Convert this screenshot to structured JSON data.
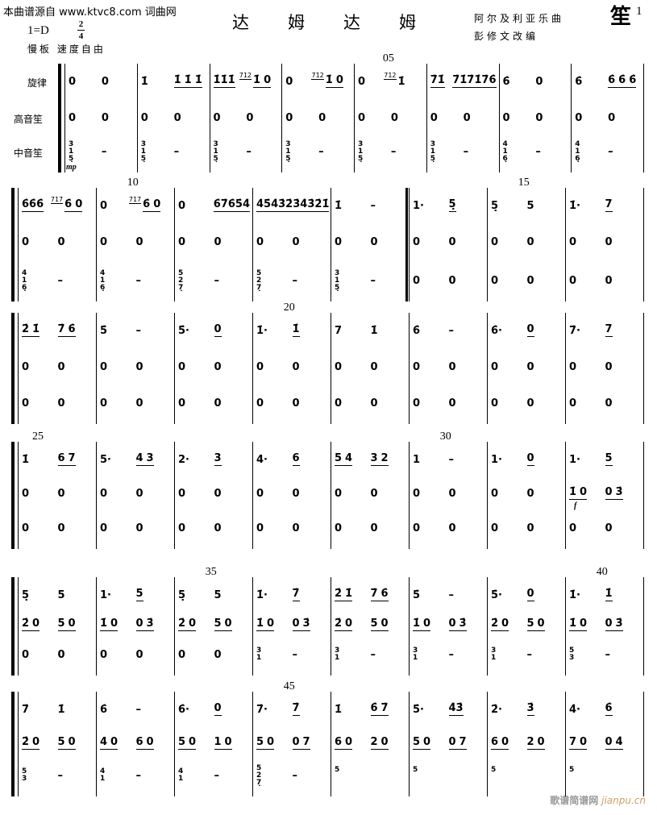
{
  "header": {
    "source": "本曲谱源自 www.ktvc8.com 词曲网",
    "key": "1=D",
    "time_top": "2",
    "time_bottom": "4",
    "tempo": "慢板 速度自由",
    "title": "达姆达姆",
    "composer": "阿尔及利亚乐曲",
    "arranger": "彭修文改编",
    "instrument": "笙",
    "page": "1"
  },
  "staff_labels": [
    "旋律",
    "高音笙",
    "中音笙"
  ],
  "dynamics": {
    "mp": "mp",
    "f": "f"
  },
  "systems": [
    {
      "numbers": [
        {
          "at": 4,
          "text": "05"
        }
      ],
      "measures": [
        {
          "melody": "0 0",
          "high": "0 0",
          "mid": "3/1/5̣ –"
        },
        {
          "melody": "1̇ [1̇ 1̇ 1̇]",
          "high": "0 0",
          "mid": "3/1/5̣ –"
        },
        {
          "melody": "[1̇1̇1̇] {7̇1̇2̇} [1̇ 0]",
          "high": "0 0",
          "mid": "3/1/5̣ –"
        },
        {
          "melody": "0 {7̇1̇2̇} [1̇ 0]",
          "high": "0 0",
          "mid": "3/1/5̣ –"
        },
        {
          "melody": "0 {7̇1̇2̇} 1̇",
          "high": "0 0",
          "mid": "3/1/5̣ –"
        },
        {
          "melody": "[7̇1̇] [7̇1̇7̇1̇7̇6̇]",
          "high": "0 0",
          "mid": "3/1/5̣ –"
        },
        {
          "melody": "6̇ 0",
          "high": "0 0",
          "mid": "4/1/6̣ –"
        },
        {
          "melody": "6̇ [6̇ 6̇ 6̇]",
          "high": "0 0",
          "mid": "4/1/6̣ –"
        }
      ]
    },
    {
      "numbers": [
        {
          "at": 1,
          "text": "10"
        },
        {
          "at": 6,
          "text": "15"
        }
      ],
      "measures": [
        {
          "melody": "[6̇6̇6̇] {7̇1̇7̇} [6̇ 0]",
          "high": "0 0",
          "mid": "4/1/6̣ –"
        },
        {
          "melody": "0 {7̇1̇7̇} [6̇ 0]",
          "high": "0 0",
          "mid": "4/1/6̣ –"
        },
        {
          "melody": "0 [6̇7̇6̇5̇4̇]",
          "high": "0 0",
          "mid": "5/2/7̣ –"
        },
        {
          "melody": "[4̇5̇4̇3̇2̇] [3̇4̇3̇2̇1̇]",
          "high": "0 0",
          "mid": "5/2/7̣ –"
        },
        {
          "melody": "1̇ –",
          "high": "0 0",
          "mid": "3/1/5̣ –"
        },
        {
          "melody": "1· [5̣]",
          "high": "0 0",
          "mid": "0 0"
        },
        {
          "melody": "5̣ 5",
          "high": "0 0",
          "mid": "0 0"
        },
        {
          "melody": "1̇· [7]",
          "high": "0 0",
          "mid": "0 0"
        }
      ]
    },
    {
      "numbers": [
        {
          "at": 3,
          "text": "20"
        }
      ],
      "measures": [
        {
          "melody": "[2̇ 1̇] [7̇ 6̇]",
          "high": "0 0",
          "mid": "0 0"
        },
        {
          "melody": "5̇ –",
          "high": "0 0",
          "mid": "0 0"
        },
        {
          "melody": "5̇· [0]",
          "high": "0 0",
          "mid": "0 0"
        },
        {
          "melody": "1̇· [1̇]",
          "high": "0 0",
          "mid": "0 0"
        },
        {
          "melody": "7 1̇",
          "high": "0 0",
          "mid": "0 0"
        },
        {
          "melody": "6̇ –",
          "high": "0 0",
          "mid": "0 0"
        },
        {
          "melody": "6̇· [0]",
          "high": "0 0",
          "mid": "0 0"
        },
        {
          "melody": "7̇· [7]",
          "high": "0 0",
          "mid": "0 0"
        }
      ]
    },
    {
      "numbers": [
        {
          "at": 0,
          "text": "25"
        },
        {
          "at": 5,
          "text": "30"
        }
      ],
      "measures": [
        {
          "melody": "1̇ [6 7]",
          "high": "0 0",
          "mid": "0 0"
        },
        {
          "melody": "5· [4 3]",
          "high": "0 0",
          "mid": "0 0"
        },
        {
          "melody": "2· [3]",
          "high": "0 0",
          "mid": "0 0"
        },
        {
          "melody": "4· [6]",
          "high": "0 0",
          "mid": "0 0"
        },
        {
          "melody": "[5 4] [3 2]",
          "high": "0 0",
          "mid": "0 0"
        },
        {
          "melody": "1 –",
          "high": "0 0",
          "mid": "0 0"
        },
        {
          "melody": "1· [0]",
          "high": "0 0",
          "mid": "0 0"
        },
        {
          "melody": "1· [5]",
          "high": "[1̇ 0] [0 3̇]",
          "mid": "0 0"
        }
      ]
    },
    {
      "numbers": [
        {
          "at": 2,
          "text": "35"
        },
        {
          "at": 7,
          "text": "40"
        }
      ],
      "measures": [
        {
          "melody": "5̣ 5",
          "high": "[2̇ 0] [5 0]",
          "mid": "0 0"
        },
        {
          "melody": "1· [5]",
          "high": "[1̇ 0] [0 3̇]",
          "mid": "0 0"
        },
        {
          "melody": "5̣ 5",
          "high": "[2̇ 0] [5 0]",
          "mid": "0 0"
        },
        {
          "melody": "1̇· [7̇]",
          "high": "[1̇ 0] [0 3̇]",
          "mid": "3/1 –"
        },
        {
          "melody": "[2̇ 1̇] [7̇ 6̇]",
          "high": "[2̇ 0] [5 0]",
          "mid": "3/1 –"
        },
        {
          "melody": "5̇ –",
          "high": "[1̇ 0] [0 3̇]",
          "mid": "3/1 –"
        },
        {
          "melody": "5̇· [0]",
          "high": "[2̇ 0] [5 0]",
          "mid": "3/1 –"
        },
        {
          "melody": "1̇· [1̇]",
          "high": "[1̇ 0] [0 3̇]",
          "mid": "5/3 –"
        }
      ]
    },
    {
      "numbers": [
        {
          "at": 3,
          "text": "45"
        }
      ],
      "measures": [
        {
          "melody": "7̇ 1̇",
          "high": "[2̇ 0] [5 0]",
          "mid": "5/3 –"
        },
        {
          "melody": "6̇ –",
          "high": "[4 0] [6 0]",
          "mid": "4/1 –"
        },
        {
          "melody": "6̇· [0]",
          "high": "[5 0] [1 0]",
          "mid": "4/1 –"
        },
        {
          "melody": "7̇· [7̇]",
          "high": "[5 0] [0 7]",
          "mid": "5/2/7̣ –"
        },
        {
          "melody": "1̇ [6̇ 7̇]",
          "high": "[6 0] [2 0]",
          "mid": "5"
        },
        {
          "melody": "5̇· [4̇3̇]",
          "high": "[5 0] [0 7]",
          "mid": "5"
        },
        {
          "melody": "2̇· [3̇]",
          "high": "[6 0] [2 0]",
          "mid": "5"
        },
        {
          "melody": "4̇· [6̇]",
          "high": "[7 0] [0 4̇]",
          "mid": "5"
        }
      ]
    }
  ],
  "footer_watermark": {
    "cn": "歌谱简谱网",
    "url": "jianpu.cn"
  }
}
